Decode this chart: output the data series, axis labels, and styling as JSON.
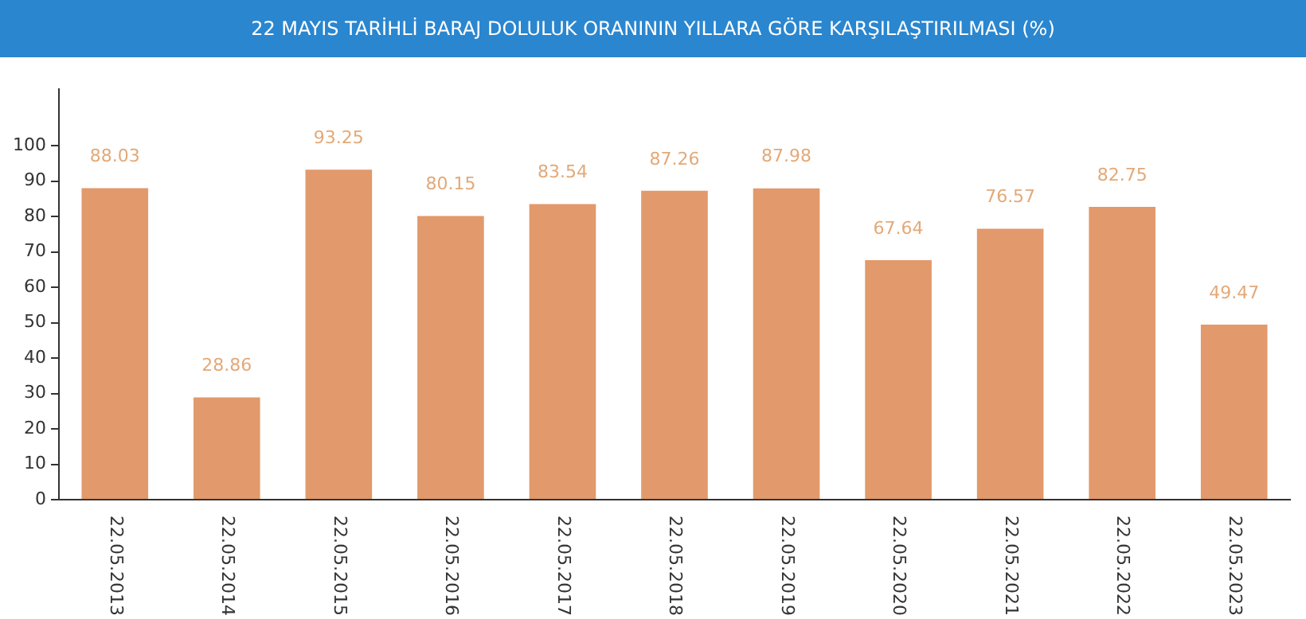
{
  "chart_data": {
    "type": "bar",
    "title": "22 MAYIS TARİHLİ BARAJ DOLULUK ORANININ YILLARA GÖRE KARŞILAŞTIRILMASI (%)",
    "categories": [
      "22.05.2013",
      "22.05.2014",
      "22.05.2015",
      "22.05.2016",
      "22.05.2017",
      "22.05.2018",
      "22.05.2019",
      "22.05.2020",
      "22.05.2021",
      "22.05.2022",
      "22.05.2023"
    ],
    "values": [
      88.03,
      28.86,
      93.25,
      80.15,
      83.54,
      87.26,
      87.98,
      67.64,
      76.57,
      82.75,
      49.47
    ],
    "color": "#e2996b",
    "ylim": [
      0,
      116
    ],
    "yticks": [
      0,
      10,
      20,
      30,
      40,
      50,
      60,
      70,
      80,
      90,
      100
    ],
    "grid": false,
    "legend": false,
    "data_labels": true
  }
}
